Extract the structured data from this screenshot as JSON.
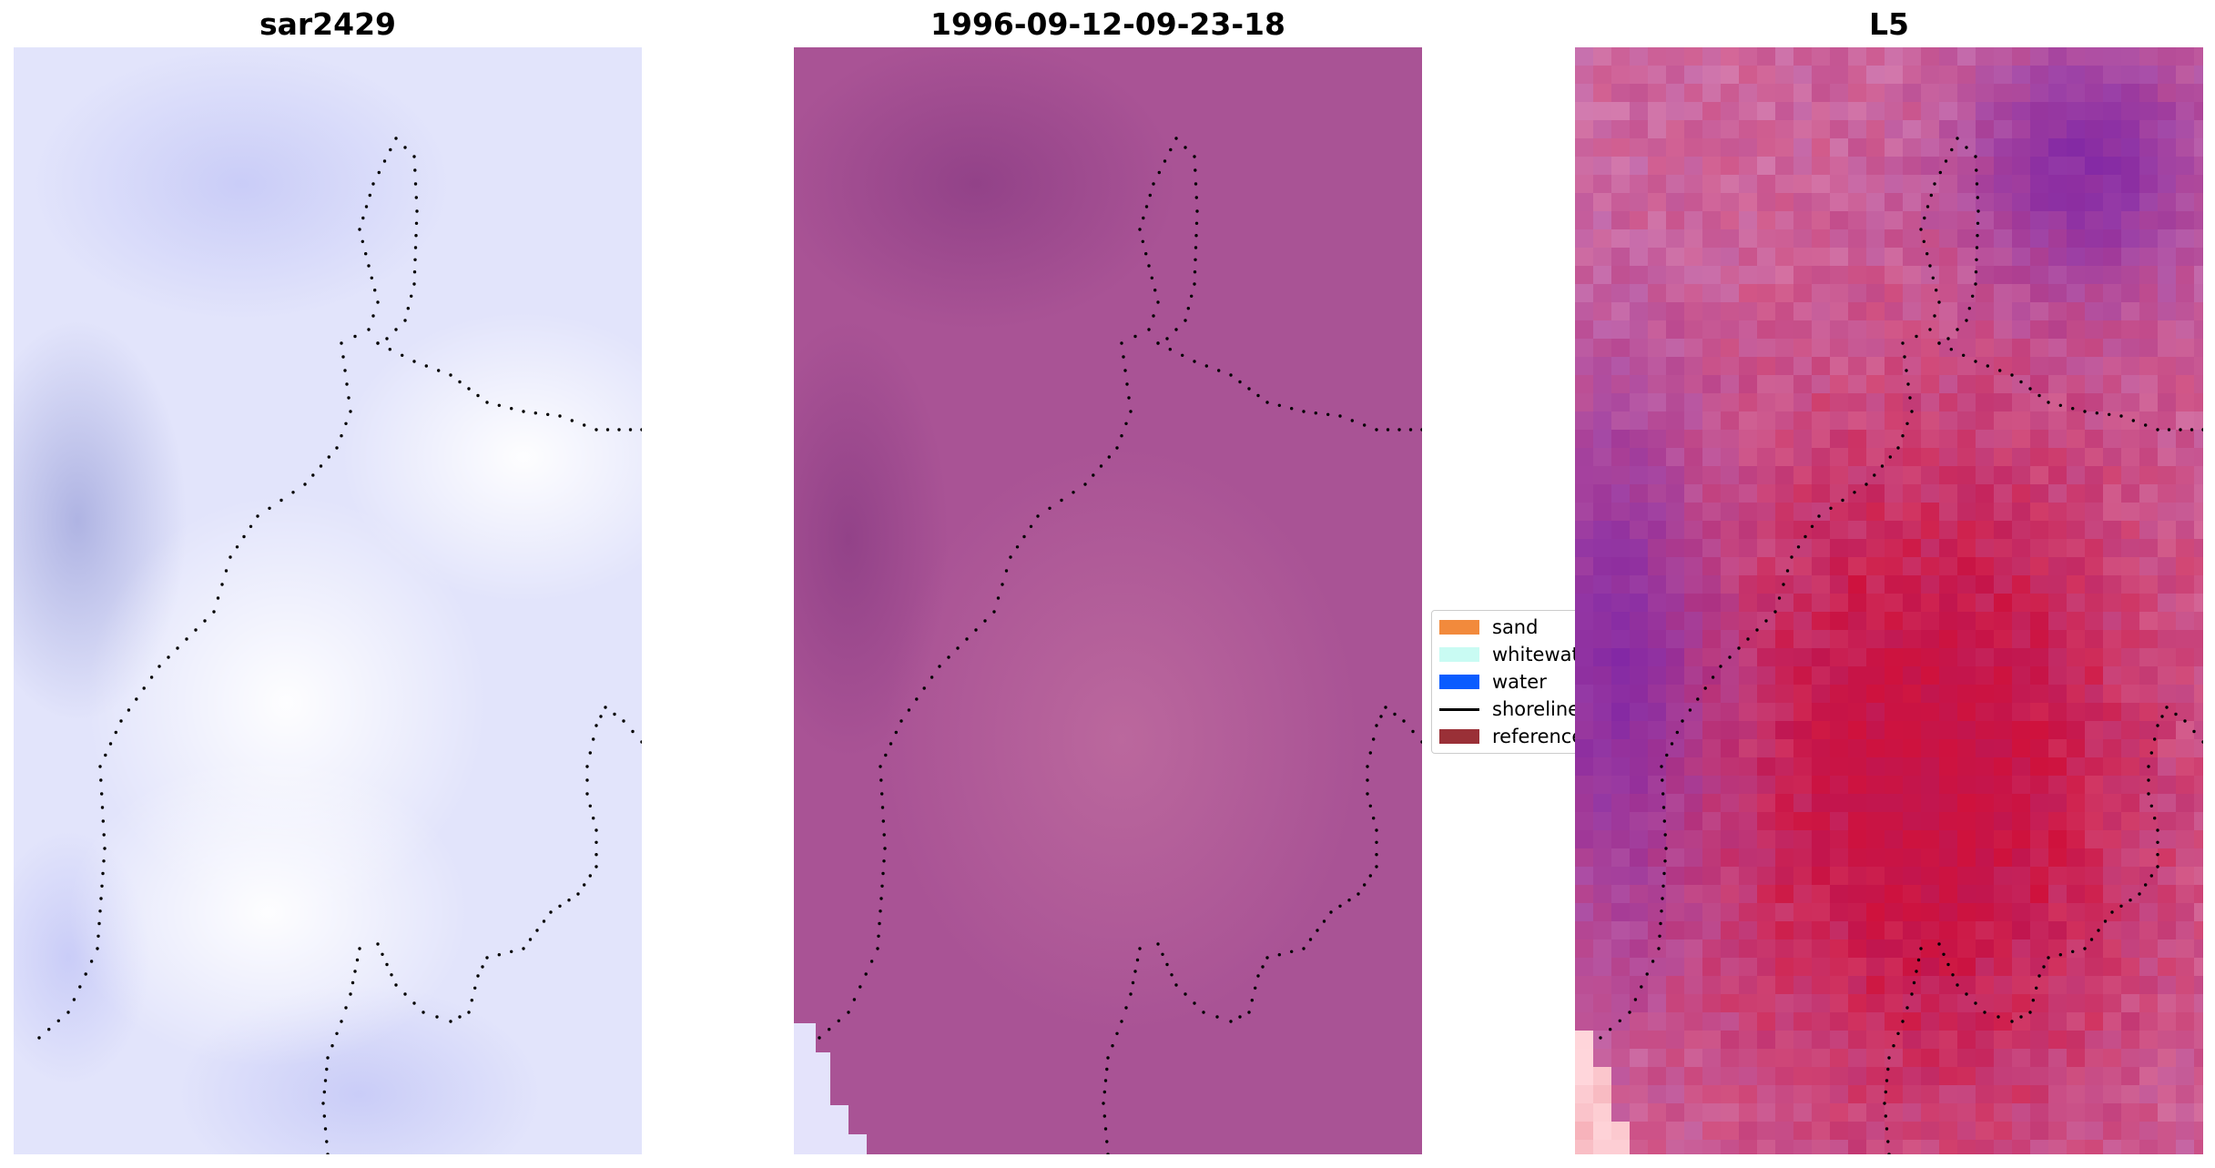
{
  "panels": [
    {
      "title": "sar2429"
    },
    {
      "title": "1996-09-12-09-23-18"
    },
    {
      "title": "L5"
    }
  ],
  "legend": {
    "items": [
      {
        "label": "sand",
        "color": "#f28a3c",
        "kind": "patch"
      },
      {
        "label": "whitewat",
        "color": "#c9fbf3",
        "kind": "patch"
      },
      {
        "label": "water",
        "color": "#0a5cff",
        "kind": "patch"
      },
      {
        "label": "shoreline",
        "color": "#000000",
        "kind": "line"
      },
      {
        "label": "reference",
        "color": "#9a3037",
        "kind": "patch"
      }
    ]
  },
  "colors": {
    "panel1_base": "#e2e4fb",
    "panel2_base": "#ac5898",
    "panel3_base": "#c8578f",
    "shoreline_dots": "#000000"
  }
}
